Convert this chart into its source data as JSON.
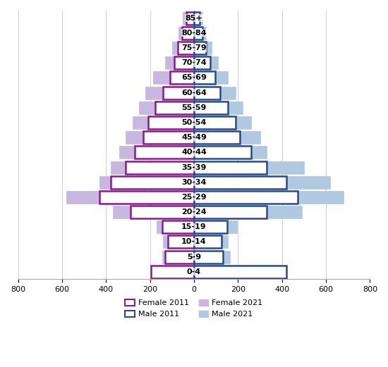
{
  "age_groups": [
    "0-4",
    "5-9",
    "10-14",
    "15-19",
    "20-24",
    "25-29",
    "30-34",
    "35-39",
    "40-44",
    "45-49",
    "50-54",
    "55-59",
    "60-64",
    "65-69",
    "70-74",
    "75-79",
    "80-84",
    "85+"
  ],
  "female_2011": [
    195,
    130,
    120,
    145,
    290,
    430,
    380,
    310,
    270,
    230,
    210,
    175,
    140,
    110,
    90,
    75,
    55,
    35
  ],
  "female_2021": [
    185,
    145,
    140,
    170,
    370,
    580,
    430,
    380,
    340,
    310,
    280,
    250,
    220,
    185,
    130,
    100,
    70,
    50
  ],
  "male_2011": [
    420,
    130,
    125,
    150,
    330,
    470,
    420,
    330,
    260,
    210,
    190,
    155,
    120,
    95,
    75,
    55,
    40,
    25
  ],
  "male_2021": [
    375,
    165,
    155,
    195,
    490,
    680,
    620,
    500,
    330,
    300,
    260,
    220,
    190,
    155,
    110,
    80,
    55,
    40
  ],
  "xlim": 800,
  "bar_height": 0.85,
  "female_2011_facecolor": "#ffffff",
  "female_2011_edgecolor": "#8B1A8B",
  "female_2021_facecolor": "#C8B8E0",
  "female_2021_edgecolor": "#C8B8E0",
  "male_2011_facecolor": "#ffffff",
  "male_2011_edgecolor": "#2B4A8A",
  "male_2021_facecolor": "#B0C8E0",
  "male_2021_edgecolor": "#B0C8E0",
  "grid_color": "#d0d0d0",
  "background_color": "#ffffff",
  "label_fontsize": 8,
  "tick_fontsize": 8,
  "legend_fontsize": 8
}
